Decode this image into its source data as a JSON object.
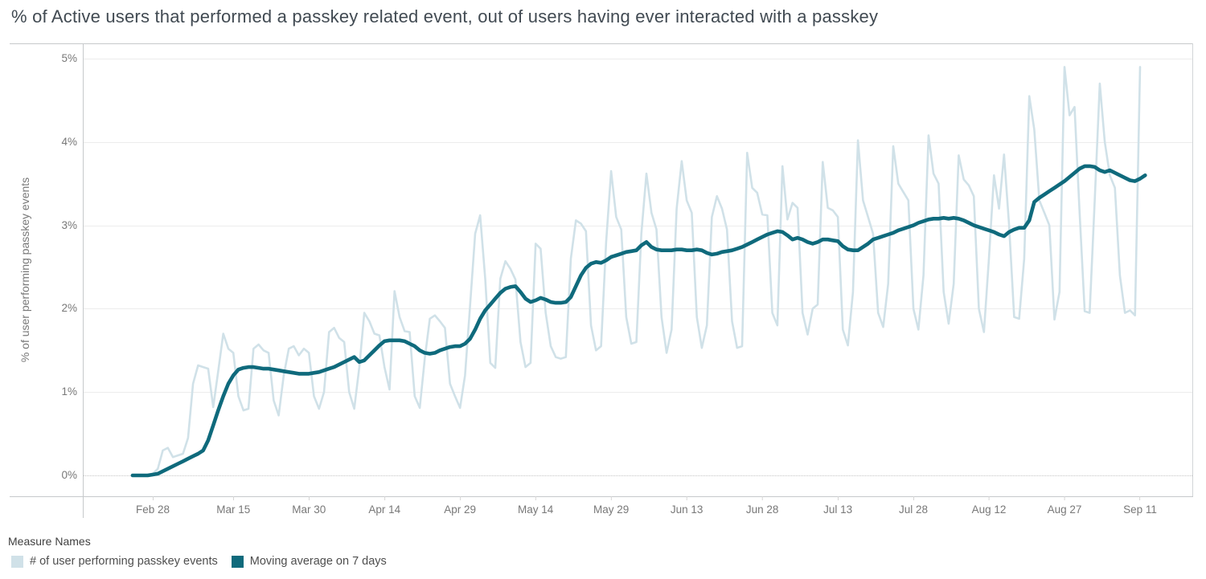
{
  "title": "% of Active users that performed a passkey related event, out of users having ever interacted with a passkey",
  "y_axis_title": "% of user performing passkey events",
  "legend_title": "Measure Names",
  "chart_data": {
    "type": "line",
    "title": "% of Active users that performed a passkey related event, out of users having ever interacted with a passkey",
    "xlabel": "",
    "ylabel": "% of user performing passkey events",
    "ylim": [
      0,
      5
    ],
    "grid": "horizontal-light",
    "zero_line_style": "dotted",
    "legend_position": "bottom-left",
    "x_unit": "day",
    "x_start_label": "Feb 24",
    "y_ticks": [
      {
        "label": "0%",
        "value": 0
      },
      {
        "label": "1%",
        "value": 1
      },
      {
        "label": "2%",
        "value": 2
      },
      {
        "label": "3%",
        "value": 3
      },
      {
        "label": "4%",
        "value": 4
      },
      {
        "label": "5%",
        "value": 5
      }
    ],
    "x_ticks": [
      {
        "label": "Feb 28",
        "day": 4
      },
      {
        "label": "Mar 15",
        "day": 20
      },
      {
        "label": "Mar 30",
        "day": 35
      },
      {
        "label": "Apr 14",
        "day": 50
      },
      {
        "label": "Apr 29",
        "day": 65
      },
      {
        "label": "May 14",
        "day": 80
      },
      {
        "label": "May 29",
        "day": 95
      },
      {
        "label": "Jun 13",
        "day": 110
      },
      {
        "label": "Jun 28",
        "day": 125
      },
      {
        "label": "Jul 13",
        "day": 140
      },
      {
        "label": "Jul 28",
        "day": 155
      },
      {
        "label": "Aug 12",
        "day": 170
      },
      {
        "label": "Aug 27",
        "day": 185
      },
      {
        "label": "Sep 11",
        "day": 200
      }
    ],
    "series": [
      {
        "name": "# of user performing passkey events",
        "role": "daily value",
        "color": "#d0e1e8",
        "stroke_width": 2.6,
        "values": [
          0.0,
          0.0,
          0.0,
          0.01,
          0.02,
          0.08,
          0.3,
          0.33,
          0.22,
          0.24,
          0.26,
          0.45,
          1.1,
          1.32,
          1.3,
          1.28,
          0.82,
          1.25,
          1.7,
          1.52,
          1.47,
          0.95,
          0.78,
          0.8,
          1.52,
          1.57,
          1.5,
          1.47,
          0.9,
          0.72,
          1.2,
          1.52,
          1.55,
          1.44,
          1.52,
          1.47,
          0.95,
          0.8,
          1.0,
          1.72,
          1.77,
          1.65,
          1.6,
          1.0,
          0.8,
          1.3,
          1.95,
          1.85,
          1.7,
          1.68,
          1.3,
          1.03,
          2.21,
          1.9,
          1.73,
          1.72,
          0.95,
          0.81,
          1.4,
          1.88,
          1.92,
          1.85,
          1.77,
          1.1,
          0.95,
          0.81,
          1.2,
          2.04,
          2.9,
          3.12,
          2.36,
          1.35,
          1.29,
          2.36,
          2.57,
          2.48,
          2.35,
          1.6,
          1.3,
          1.35,
          2.78,
          2.72,
          1.95,
          1.55,
          1.42,
          1.4,
          1.42,
          2.6,
          3.06,
          3.02,
          2.93,
          1.8,
          1.5,
          1.55,
          2.8,
          3.65,
          3.1,
          2.95,
          1.9,
          1.58,
          1.6,
          2.9,
          3.62,
          3.15,
          2.95,
          1.9,
          1.47,
          1.75,
          3.2,
          3.77,
          3.3,
          3.15,
          1.9,
          1.53,
          1.8,
          3.1,
          3.35,
          3.2,
          2.95,
          1.85,
          1.53,
          1.55,
          3.87,
          3.45,
          3.39,
          3.13,
          3.12,
          1.95,
          1.8,
          3.71,
          3.07,
          3.27,
          3.21,
          1.95,
          1.69,
          2.0,
          2.05,
          3.76,
          3.21,
          3.18,
          3.1,
          1.75,
          1.56,
          2.2,
          4.02,
          3.3,
          3.1,
          2.9,
          1.95,
          1.78,
          2.3,
          3.95,
          3.5,
          3.4,
          3.3,
          2.0,
          1.75,
          2.4,
          4.08,
          3.62,
          3.5,
          2.2,
          1.82,
          2.3,
          3.84,
          3.55,
          3.48,
          3.35,
          2.0,
          1.72,
          2.6,
          3.6,
          3.2,
          3.85,
          3.0,
          1.9,
          1.88,
          2.6,
          4.55,
          4.15,
          3.3,
          3.15,
          3.0,
          1.87,
          2.2,
          4.9,
          4.32,
          4.42,
          3.15,
          1.97,
          1.95,
          3.3,
          4.7,
          4.0,
          3.6,
          3.45,
          2.4,
          1.95,
          1.98,
          1.92,
          4.9,
          null
        ]
      },
      {
        "name": "Moving average on 7 days",
        "role": "7-day moving average",
        "color": "#0f6a7c",
        "stroke_width": 4.6,
        "values": [
          0.0,
          0.0,
          0.0,
          0.0,
          0.01,
          0.02,
          0.05,
          0.08,
          0.11,
          0.14,
          0.17,
          0.2,
          0.23,
          0.26,
          0.3,
          0.42,
          0.6,
          0.78,
          0.95,
          1.1,
          1.2,
          1.27,
          1.29,
          1.3,
          1.3,
          1.29,
          1.28,
          1.28,
          1.27,
          1.26,
          1.25,
          1.24,
          1.23,
          1.22,
          1.22,
          1.22,
          1.23,
          1.24,
          1.26,
          1.28,
          1.3,
          1.33,
          1.36,
          1.39,
          1.42,
          1.36,
          1.38,
          1.44,
          1.5,
          1.56,
          1.61,
          1.62,
          1.62,
          1.62,
          1.61,
          1.58,
          1.55,
          1.5,
          1.47,
          1.46,
          1.47,
          1.5,
          1.52,
          1.54,
          1.55,
          1.55,
          1.58,
          1.64,
          1.75,
          1.88,
          1.98,
          2.05,
          2.12,
          2.19,
          2.24,
          2.26,
          2.27,
          2.2,
          2.12,
          2.08,
          2.1,
          2.13,
          2.11,
          2.08,
          2.07,
          2.07,
          2.08,
          2.14,
          2.27,
          2.4,
          2.49,
          2.54,
          2.56,
          2.55,
          2.58,
          2.62,
          2.64,
          2.66,
          2.68,
          2.69,
          2.7,
          2.76,
          2.8,
          2.74,
          2.71,
          2.7,
          2.7,
          2.7,
          2.71,
          2.71,
          2.7,
          2.7,
          2.71,
          2.7,
          2.67,
          2.65,
          2.66,
          2.68,
          2.69,
          2.7,
          2.72,
          2.74,
          2.77,
          2.8,
          2.83,
          2.86,
          2.89,
          2.91,
          2.93,
          2.92,
          2.88,
          2.83,
          2.85,
          2.83,
          2.8,
          2.78,
          2.8,
          2.83,
          2.83,
          2.82,
          2.81,
          2.75,
          2.71,
          2.7,
          2.7,
          2.74,
          2.78,
          2.83,
          2.85,
          2.87,
          2.89,
          2.91,
          2.94,
          2.96,
          2.98,
          3.0,
          3.03,
          3.05,
          3.07,
          3.08,
          3.08,
          3.09,
          3.08,
          3.09,
          3.08,
          3.06,
          3.03,
          3.0,
          2.98,
          2.96,
          2.94,
          2.92,
          2.89,
          2.87,
          2.92,
          2.95,
          2.97,
          2.97,
          3.06,
          3.28,
          3.33,
          3.37,
          3.41,
          3.45,
          3.49,
          3.53,
          3.58,
          3.63,
          3.68,
          3.71,
          3.71,
          3.7,
          3.66,
          3.64,
          3.66,
          3.63,
          3.6,
          3.57,
          3.54,
          3.53,
          3.56,
          3.6
        ]
      }
    ]
  }
}
